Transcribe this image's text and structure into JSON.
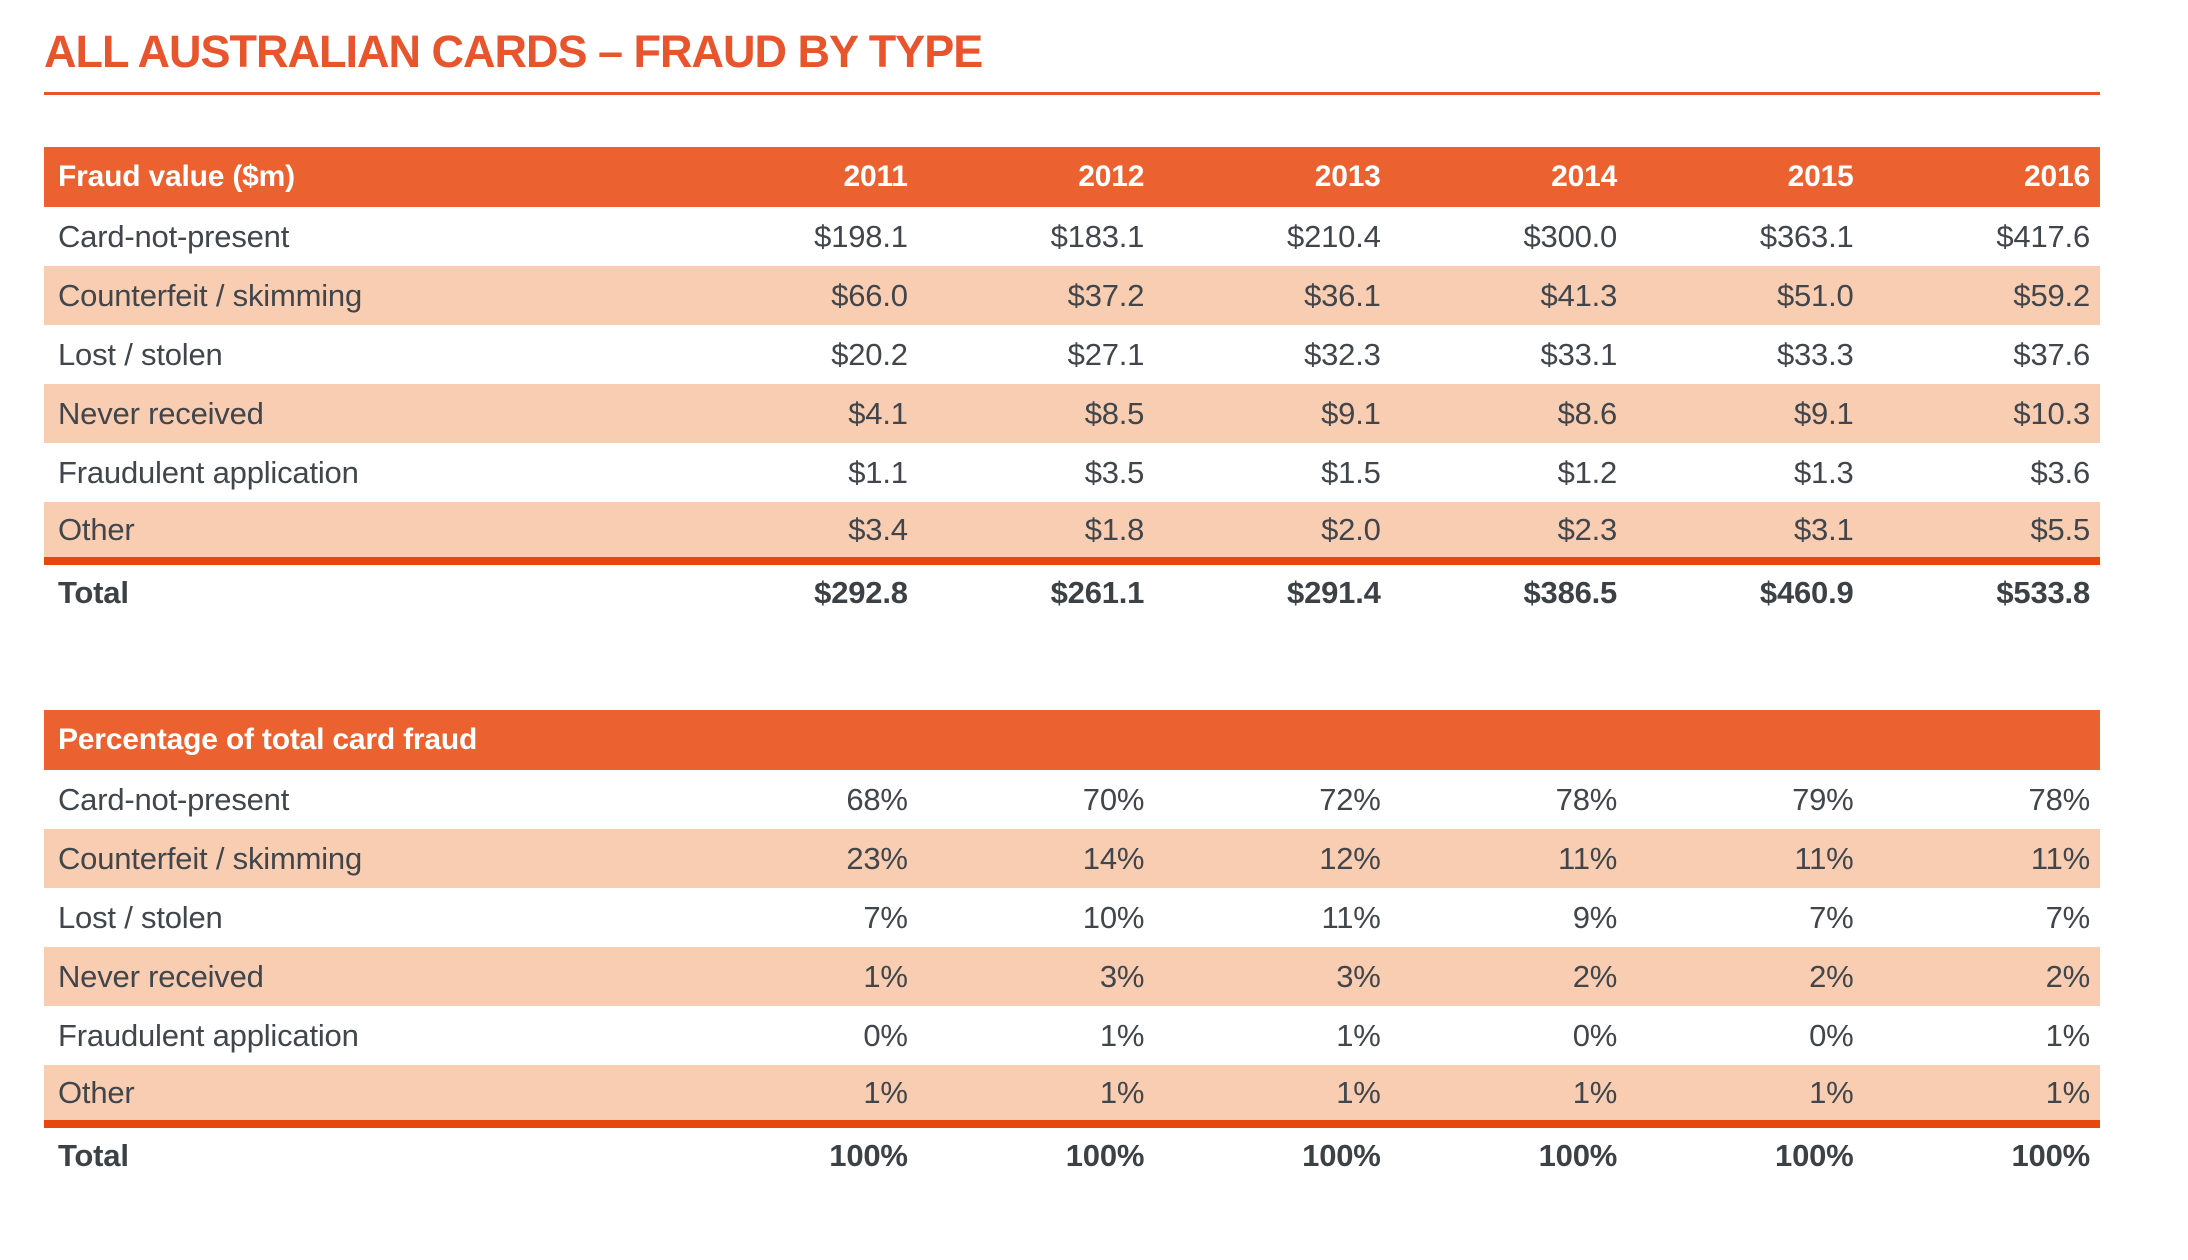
{
  "page": {
    "title": "ALL AUSTRALIAN CARDS – FRAUD BY TYPE"
  },
  "colors": {
    "accent_orange": "#EB612F",
    "title_orange": "#E8542B",
    "stripe_peach": "#F9CDB2",
    "total_rule_red": "#E5470C",
    "body_text": "#40464B"
  },
  "years": [
    "2011",
    "2012",
    "2013",
    "2014",
    "2015",
    "2016"
  ],
  "table1": {
    "header_label": "Fraud value ($m)",
    "rows": [
      {
        "label": "Card-not-present",
        "values": [
          "$198.1",
          "$183.1",
          "$210.4",
          "$300.0",
          "$363.1",
          "$417.6"
        ]
      },
      {
        "label": "Counterfeit / skimming",
        "values": [
          "$66.0",
          "$37.2",
          "$36.1",
          "$41.3",
          "$51.0",
          "$59.2"
        ]
      },
      {
        "label": "Lost / stolen",
        "values": [
          "$20.2",
          "$27.1",
          "$32.3",
          "$33.1",
          "$33.3",
          "$37.6"
        ]
      },
      {
        "label": "Never received",
        "values": [
          "$4.1",
          "$8.5",
          "$9.1",
          "$8.6",
          "$9.1",
          "$10.3"
        ]
      },
      {
        "label": "Fraudulent application",
        "values": [
          "$1.1",
          "$3.5",
          "$1.5",
          "$1.2",
          "$1.3",
          "$3.6"
        ]
      },
      {
        "label": "Other",
        "values": [
          "$3.4",
          "$1.8",
          "$2.0",
          "$2.3",
          "$3.1",
          "$5.5"
        ]
      }
    ],
    "total": {
      "label": "Total",
      "values": [
        "$292.8",
        "$261.1",
        "$291.4",
        "$386.5",
        "$460.9",
        "$533.8"
      ]
    }
  },
  "table2": {
    "header_label": "Percentage of total card fraud",
    "rows": [
      {
        "label": "Card-not-present",
        "values": [
          "68%",
          "70%",
          "72%",
          "78%",
          "79%",
          "78%"
        ]
      },
      {
        "label": "Counterfeit / skimming",
        "values": [
          "23%",
          "14%",
          "12%",
          "11%",
          "11%",
          "11%"
        ]
      },
      {
        "label": "Lost / stolen",
        "values": [
          "7%",
          "10%",
          "11%",
          "9%",
          "7%",
          "7%"
        ]
      },
      {
        "label": "Never received",
        "values": [
          "1%",
          "3%",
          "3%",
          "2%",
          "2%",
          "2%"
        ]
      },
      {
        "label": "Fraudulent application",
        "values": [
          "0%",
          "1%",
          "1%",
          "0%",
          "0%",
          "1%"
        ]
      },
      {
        "label": "Other",
        "values": [
          "1%",
          "1%",
          "1%",
          "1%",
          "1%",
          "1%"
        ]
      }
    ],
    "total": {
      "label": "Total",
      "values": [
        "100%",
        "100%",
        "100%",
        "100%",
        "100%",
        "100%"
      ]
    }
  }
}
